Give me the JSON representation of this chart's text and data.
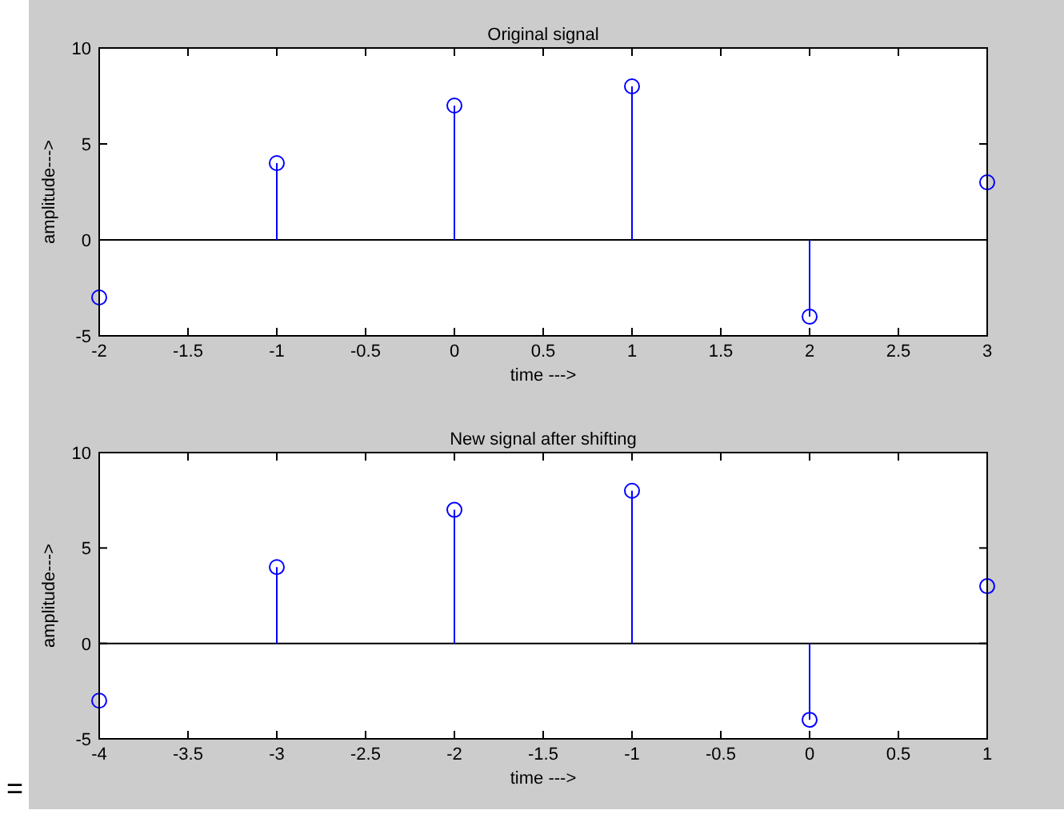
{
  "chart_data": [
    {
      "type": "lollipop",
      "title": "Original signal",
      "xlabel": "time --->",
      "ylabel": "amplitude--->",
      "x": [
        -2,
        -1,
        0,
        1,
        2,
        3
      ],
      "series": [
        {
          "color": "#0000ff",
          "values": [
            -3,
            4,
            7,
            8,
            -4,
            3
          ]
        }
      ],
      "xlim": [
        -2,
        3
      ],
      "xticks": [
        -2,
        -1.5,
        -1,
        -0.5,
        0,
        0.5,
        1,
        1.5,
        2,
        2.5,
        3
      ],
      "ylim": [
        -5,
        10
      ],
      "yticks": [
        -5,
        0,
        5,
        10
      ],
      "marker": "circle",
      "ref_lines": [
        {
          "axis": "y",
          "value": 0,
          "color": "#000000"
        }
      ]
    },
    {
      "type": "lollipop",
      "title": "New signal after shifting",
      "xlabel": "time --->",
      "ylabel": "amplitude--->",
      "x": [
        -4,
        -3,
        -2,
        -1,
        0,
        1
      ],
      "series": [
        {
          "color": "#0000ff",
          "values": [
            -3,
            4,
            7,
            8,
            -4,
            3
          ]
        }
      ],
      "xlim": [
        -4,
        1
      ],
      "xticks": [
        -4,
        -3.5,
        -3,
        -2.5,
        -2,
        -1.5,
        -1,
        -0.5,
        0,
        0.5,
        1
      ],
      "ylim": [
        -5,
        10
      ],
      "yticks": [
        -5,
        0,
        5,
        10
      ],
      "marker": "circle",
      "ref_lines": [
        {
          "axis": "y",
          "value": 0,
          "color": "#000000"
        }
      ],
      "annotations": [
        "="
      ]
    }
  ]
}
